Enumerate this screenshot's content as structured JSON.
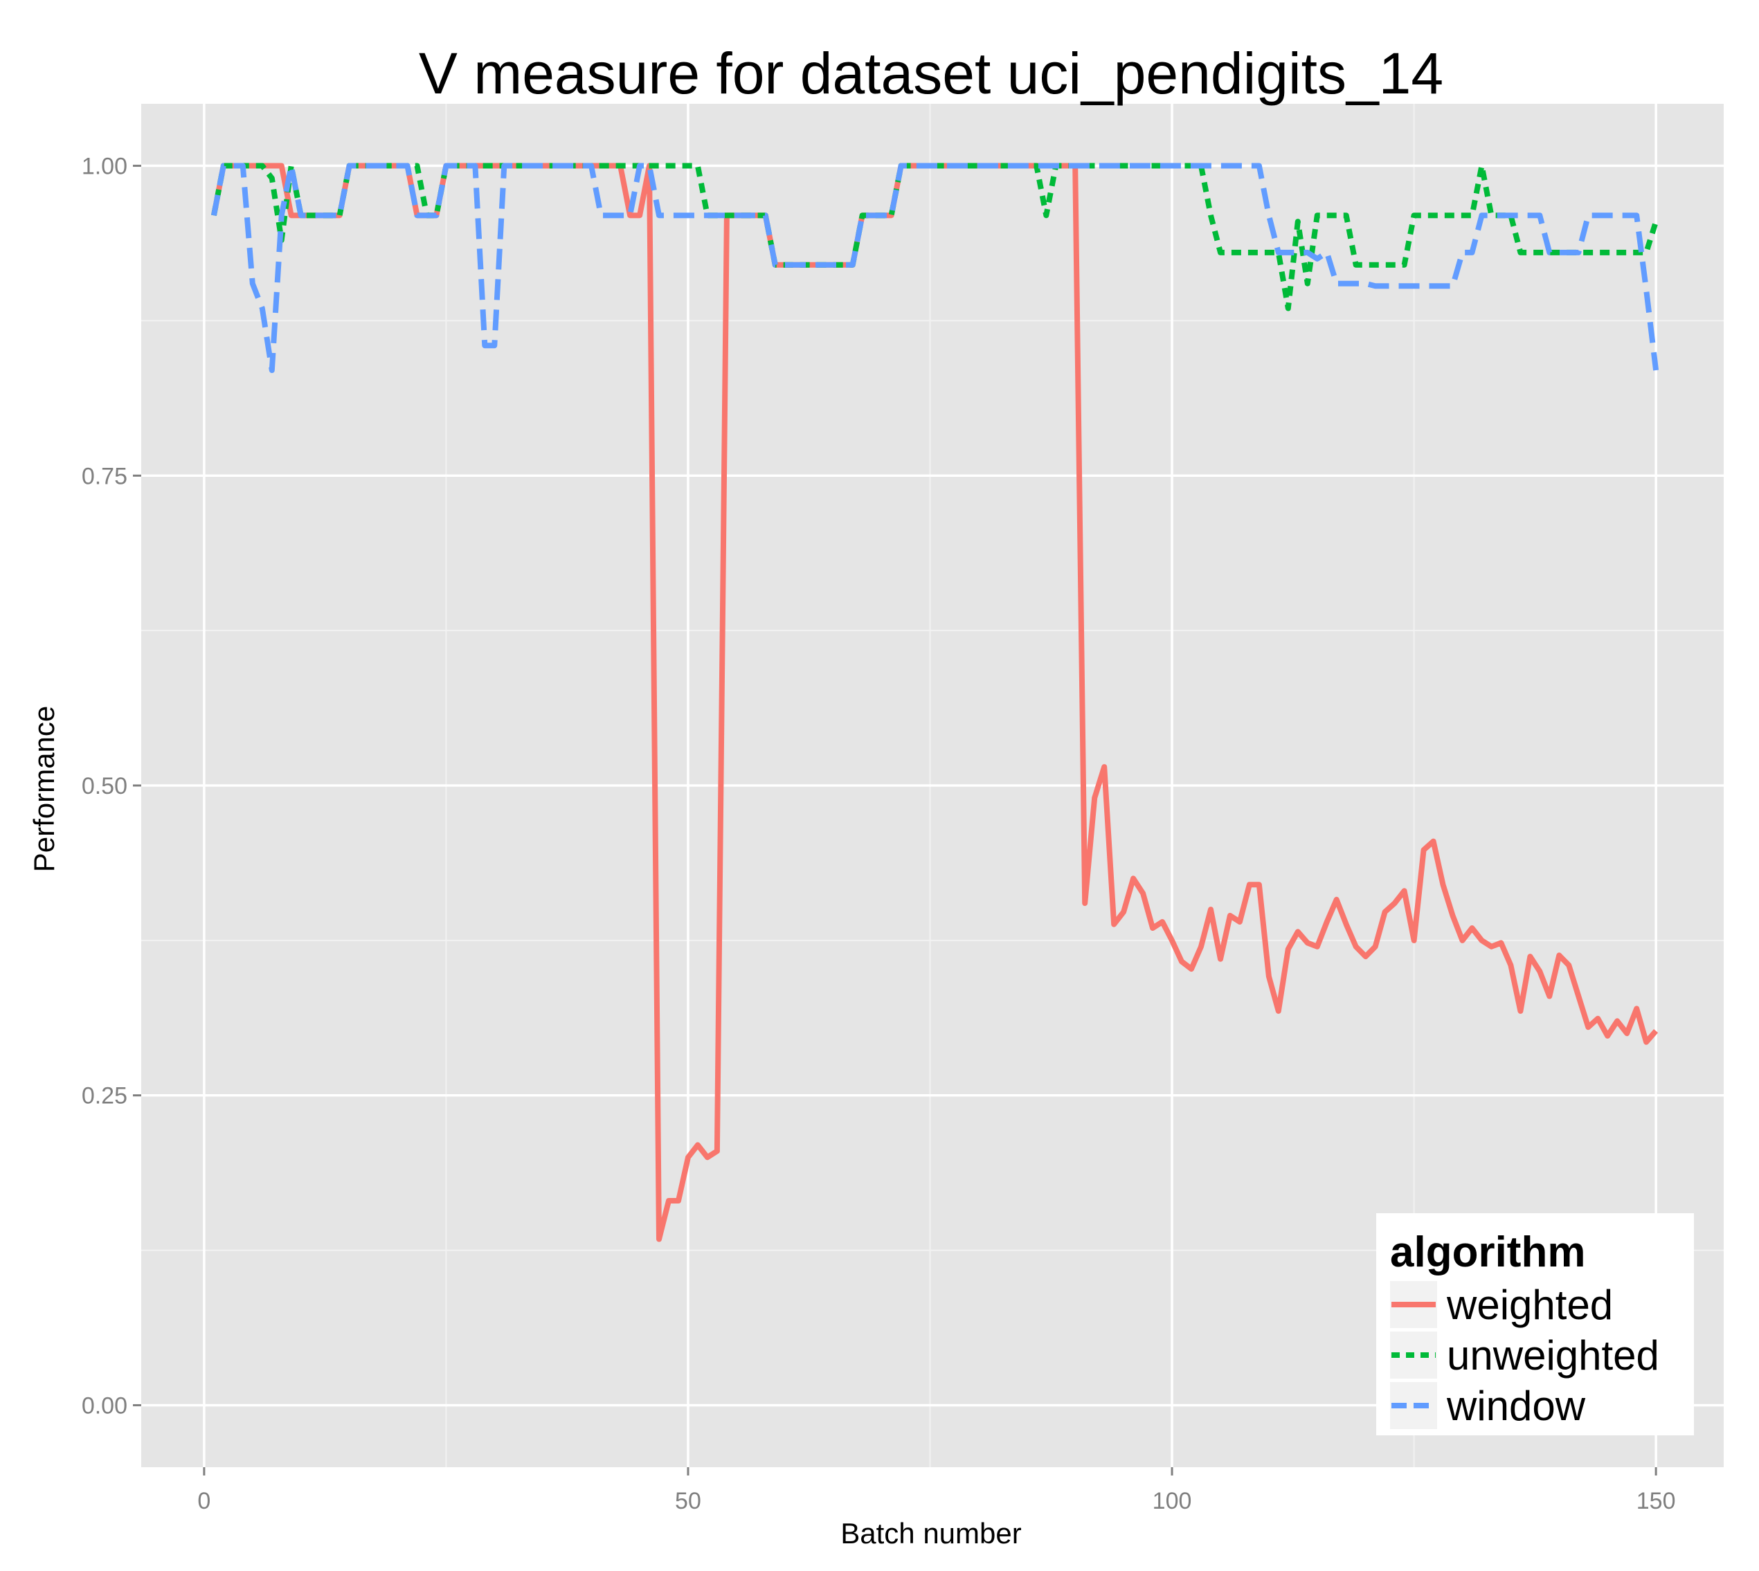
{
  "chart_data": {
    "type": "line",
    "title": "V measure for dataset uci_pendigits_14",
    "xlabel": "Batch number",
    "ylabel": "Performance",
    "xlim": [
      -6.5,
      157
    ],
    "ylim": [
      -0.05,
      1.05
    ],
    "x_ticks": [
      0,
      50,
      100,
      150
    ],
    "x_tick_labels": [
      "0",
      "50",
      "100",
      "150"
    ],
    "y_ticks": [
      0.0,
      0.25,
      0.5,
      0.75,
      1.0
    ],
    "y_tick_labels": [
      "0.00",
      "0.25",
      "0.50",
      "0.75",
      "1.00"
    ],
    "grid": true,
    "legend": {
      "title": "algorithm",
      "placement": "bottom-right",
      "items": [
        "weighted",
        "unweighted",
        "window"
      ]
    },
    "series": [
      {
        "name": "weighted",
        "color": "#F8766D",
        "dash": "solid",
        "points": [
          [
            1,
            0.96
          ],
          [
            2,
            1.0
          ],
          [
            8,
            1.0
          ],
          [
            9,
            0.96
          ],
          [
            14,
            0.96
          ],
          [
            15,
            1.0
          ],
          [
            21,
            1.0
          ],
          [
            22,
            0.96
          ],
          [
            24,
            0.96
          ],
          [
            25,
            1.0
          ],
          [
            43,
            1.0
          ],
          [
            44,
            0.96
          ],
          [
            45,
            0.96
          ],
          [
            46,
            1.0
          ],
          [
            47,
            0.134
          ],
          [
            48,
            0.165
          ],
          [
            49,
            0.165
          ],
          [
            50,
            0.2
          ],
          [
            51,
            0.21
          ],
          [
            52,
            0.2
          ],
          [
            53,
            0.205
          ],
          [
            54,
            0.96
          ],
          [
            58,
            0.96
          ],
          [
            59,
            0.92
          ],
          [
            67,
            0.92
          ],
          [
            68,
            0.96
          ],
          [
            71,
            0.96
          ],
          [
            72,
            1.0
          ],
          [
            90,
            1.0
          ],
          [
            91,
            0.405
          ],
          [
            92,
            0.49
          ],
          [
            93,
            0.515
          ],
          [
            94,
            0.388
          ],
          [
            95,
            0.398
          ],
          [
            96,
            0.425
          ],
          [
            97,
            0.413
          ],
          [
            98,
            0.385
          ],
          [
            99,
            0.39
          ],
          [
            100,
            0.375
          ],
          [
            101,
            0.358
          ],
          [
            102,
            0.352
          ],
          [
            103,
            0.37
          ],
          [
            104,
            0.4
          ],
          [
            105,
            0.36
          ],
          [
            106,
            0.395
          ],
          [
            107,
            0.39
          ],
          [
            108,
            0.42
          ],
          [
            109,
            0.42
          ],
          [
            110,
            0.346
          ],
          [
            111,
            0.318
          ],
          [
            112,
            0.368
          ],
          [
            113,
            0.382
          ],
          [
            114,
            0.373
          ],
          [
            115,
            0.37
          ],
          [
            116,
            0.39
          ],
          [
            117,
            0.408
          ],
          [
            118,
            0.388
          ],
          [
            119,
            0.37
          ],
          [
            120,
            0.362
          ],
          [
            121,
            0.37
          ],
          [
            122,
            0.398
          ],
          [
            123,
            0.405
          ],
          [
            124,
            0.415
          ],
          [
            125,
            0.375
          ],
          [
            126,
            0.448
          ],
          [
            127,
            0.455
          ],
          [
            128,
            0.42
          ],
          [
            129,
            0.395
          ],
          [
            130,
            0.375
          ],
          [
            131,
            0.385
          ],
          [
            132,
            0.375
          ],
          [
            133,
            0.37
          ],
          [
            134,
            0.373
          ],
          [
            135,
            0.355
          ],
          [
            136,
            0.318
          ],
          [
            137,
            0.362
          ],
          [
            138,
            0.35
          ],
          [
            139,
            0.33
          ],
          [
            140,
            0.363
          ],
          [
            141,
            0.355
          ],
          [
            142,
            0.33
          ],
          [
            143,
            0.305
          ],
          [
            144,
            0.312
          ],
          [
            145,
            0.298
          ],
          [
            146,
            0.31
          ],
          [
            147,
            0.3
          ],
          [
            148,
            0.32
          ],
          [
            149,
            0.293
          ],
          [
            150,
            0.302
          ]
        ]
      },
      {
        "name": "unweighted",
        "color": "#00BA38",
        "dash": "dotted",
        "points": [
          [
            1,
            0.96
          ],
          [
            2,
            1.0
          ],
          [
            6,
            1.0
          ],
          [
            7,
            0.99
          ],
          [
            8,
            0.94
          ],
          [
            9,
            1.0
          ],
          [
            10,
            0.96
          ],
          [
            14,
            0.96
          ],
          [
            15,
            1.0
          ],
          [
            22,
            1.0
          ],
          [
            23,
            0.96
          ],
          [
            24,
            0.96
          ],
          [
            25,
            1.0
          ],
          [
            50,
            1.0
          ],
          [
            51,
            1.0
          ],
          [
            52,
            0.96
          ],
          [
            58,
            0.96
          ],
          [
            59,
            0.92
          ],
          [
            67,
            0.92
          ],
          [
            68,
            0.96
          ],
          [
            71,
            0.96
          ],
          [
            72,
            1.0
          ],
          [
            86,
            1.0
          ],
          [
            87,
            0.96
          ],
          [
            88,
            1.0
          ],
          [
            103,
            1.0
          ],
          [
            104,
            0.96
          ],
          [
            105,
            0.93
          ],
          [
            111,
            0.93
          ],
          [
            112,
            0.885
          ],
          [
            113,
            0.955
          ],
          [
            114,
            0.905
          ],
          [
            115,
            0.96
          ],
          [
            118,
            0.96
          ],
          [
            119,
            0.92
          ],
          [
            124,
            0.92
          ],
          [
            125,
            0.96
          ],
          [
            131,
            0.96
          ],
          [
            132,
            1.0
          ],
          [
            133,
            0.96
          ],
          [
            135,
            0.96
          ],
          [
            136,
            0.93
          ],
          [
            148,
            0.93
          ],
          [
            149,
            0.93
          ],
          [
            150,
            0.955
          ]
        ]
      },
      {
        "name": "window",
        "color": "#619CFF",
        "dash": "dashed",
        "points": [
          [
            1,
            0.96
          ],
          [
            2,
            1.0
          ],
          [
            4,
            1.0
          ],
          [
            5,
            0.905
          ],
          [
            6,
            0.885
          ],
          [
            7,
            0.835
          ],
          [
            8,
            0.96
          ],
          [
            9,
            1.0
          ],
          [
            10,
            0.96
          ],
          [
            14,
            0.96
          ],
          [
            15,
            1.0
          ],
          [
            21,
            1.0
          ],
          [
            22,
            0.96
          ],
          [
            24,
            0.96
          ],
          [
            25,
            1.0
          ],
          [
            28,
            1.0
          ],
          [
            29,
            0.855
          ],
          [
            30,
            0.855
          ],
          [
            31,
            1.0
          ],
          [
            40,
            1.0
          ],
          [
            41,
            0.96
          ],
          [
            44,
            0.96
          ],
          [
            45,
            1.0
          ],
          [
            46,
            1.0
          ],
          [
            47,
            0.96
          ],
          [
            58,
            0.96
          ],
          [
            59,
            0.92
          ],
          [
            67,
            0.92
          ],
          [
            68,
            0.96
          ],
          [
            71,
            0.96
          ],
          [
            72,
            1.0
          ],
          [
            109,
            1.0
          ],
          [
            110,
            0.96
          ],
          [
            111,
            0.93
          ],
          [
            114,
            0.93
          ],
          [
            115,
            0.925
          ],
          [
            116,
            0.93
          ],
          [
            117,
            0.905
          ],
          [
            120,
            0.905
          ],
          [
            121,
            0.903
          ],
          [
            129,
            0.903
          ],
          [
            130,
            0.93
          ],
          [
            131,
            0.93
          ],
          [
            132,
            0.96
          ],
          [
            138,
            0.96
          ],
          [
            139,
            0.93
          ],
          [
            142,
            0.93
          ],
          [
            143,
            0.96
          ],
          [
            148,
            0.96
          ],
          [
            149,
            0.9
          ],
          [
            150,
            0.835
          ]
        ]
      }
    ]
  }
}
